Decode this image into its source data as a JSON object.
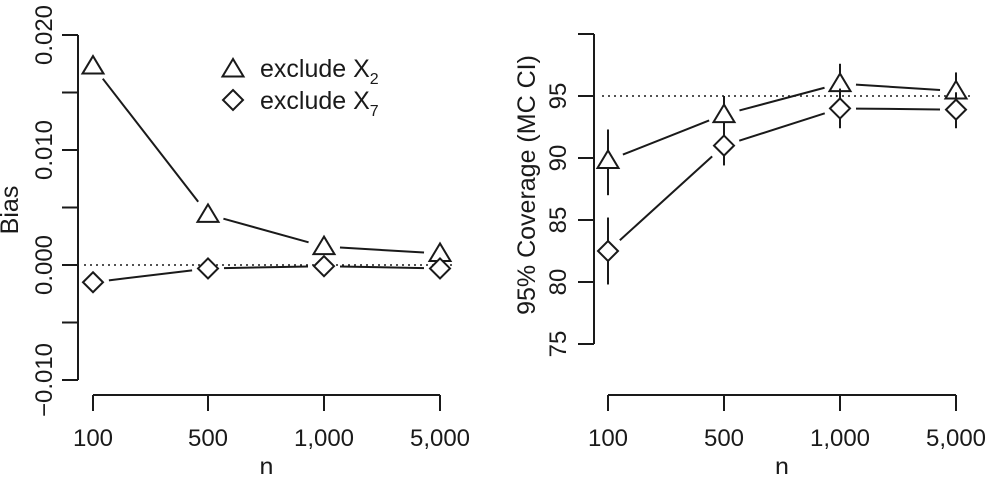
{
  "chart_data": [
    {
      "type": "line",
      "title": "",
      "xlabel": "n",
      "ylabel": "Bias",
      "categories": [
        "100",
        "500",
        "1,000",
        "5,000"
      ],
      "yticks": [
        "−0.010",
        "0.000",
        "0.010",
        "0.020"
      ],
      "ylim": [
        -0.01,
        0.02
      ],
      "grid": false,
      "reference_line": {
        "y": 0.0,
        "style": "dotted"
      },
      "legend": {
        "position": "top-right",
        "entries": [
          {
            "marker": "triangle",
            "label": "exclude X",
            "subscript": "2"
          },
          {
            "marker": "diamond",
            "label": "exclude X",
            "subscript": "7"
          }
        ]
      },
      "series": [
        {
          "name": "exclude X2",
          "marker": "triangle",
          "values": [
            0.0173,
            0.0044,
            0.0016,
            0.001
          ]
        },
        {
          "name": "exclude X7",
          "marker": "diamond",
          "values": [
            -0.0015,
            -0.0003,
            -0.0001,
            -0.0003
          ]
        }
      ]
    },
    {
      "type": "line",
      "title": "",
      "xlabel": "n",
      "ylabel": "95% Coverage (MC CI)",
      "categories": [
        "100",
        "500",
        "1,000",
        "5,000"
      ],
      "yticks": [
        "75",
        "80",
        "85",
        "90",
        "95"
      ],
      "ylim": [
        75,
        100
      ],
      "grid": false,
      "reference_line": {
        "y": 95,
        "style": "dotted"
      },
      "series": [
        {
          "name": "exclude X2",
          "marker": "triangle",
          "values": [
            89.8,
            93.5,
            96.0,
            95.4
          ],
          "ci_low": [
            87.0,
            91.8,
            94.4,
            93.9
          ],
          "ci_high": [
            92.3,
            95.0,
            97.6,
            96.9
          ]
        },
        {
          "name": "exclude X7",
          "marker": "diamond",
          "values": [
            82.5,
            91.0,
            94.0,
            93.9
          ],
          "ci_low": [
            79.8,
            89.4,
            92.4,
            92.4
          ],
          "ci_high": [
            85.2,
            92.7,
            95.6,
            95.3
          ]
        }
      ]
    }
  ]
}
